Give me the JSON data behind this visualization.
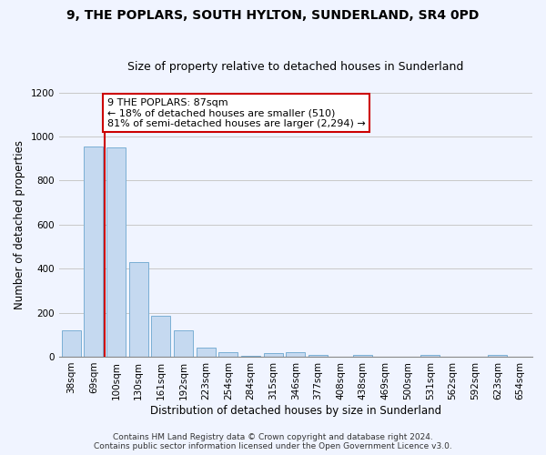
{
  "title1": "9, THE POPLARS, SOUTH HYLTON, SUNDERLAND, SR4 0PD",
  "title2": "Size of property relative to detached houses in Sunderland",
  "xlabel": "Distribution of detached houses by size in Sunderland",
  "ylabel": "Number of detached properties",
  "footer1": "Contains HM Land Registry data © Crown copyright and database right 2024.",
  "footer2": "Contains public sector information licensed under the Open Government Licence v3.0.",
  "categories": [
    "38sqm",
    "69sqm",
    "100sqm",
    "130sqm",
    "161sqm",
    "192sqm",
    "223sqm",
    "254sqm",
    "284sqm",
    "315sqm",
    "346sqm",
    "377sqm",
    "408sqm",
    "438sqm",
    "469sqm",
    "500sqm",
    "531sqm",
    "562sqm",
    "592sqm",
    "623sqm",
    "654sqm"
  ],
  "values": [
    120,
    955,
    950,
    430,
    185,
    120,
    43,
    22,
    5,
    15,
    20,
    10,
    0,
    10,
    0,
    0,
    10,
    0,
    0,
    10,
    0
  ],
  "bar_color": "#c5d9f0",
  "bar_edge_color": "#7bafd4",
  "vline_color": "#cc0000",
  "annotation_text": "9 THE POPLARS: 87sqm\n← 18% of detached houses are smaller (510)\n81% of semi-detached houses are larger (2,294) →",
  "annotation_box_color": "#ffffff",
  "annotation_box_edge": "#cc0000",
  "ylim": [
    0,
    1200
  ],
  "yticks": [
    0,
    200,
    400,
    600,
    800,
    1000,
    1200
  ],
  "bg_color": "#f0f4ff",
  "plot_bg_color": "#f0f4ff",
  "grid_color": "#c8c8c8",
  "title1_fontsize": 10,
  "title2_fontsize": 9,
  "axis_label_fontsize": 8.5,
  "tick_fontsize": 7.5,
  "annotation_fontsize": 8,
  "footer_fontsize": 6.5
}
